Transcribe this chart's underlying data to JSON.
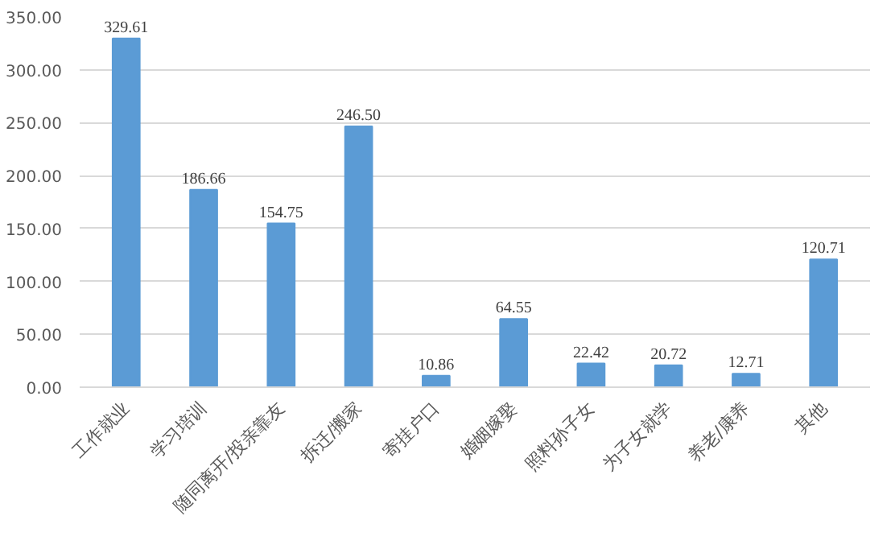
{
  "chart_data": {
    "type": "bar",
    "categories": [
      "工作就业",
      "学习培训",
      "随同离开/投亲靠友",
      "拆迁/搬家",
      "寄挂户口",
      "婚姻嫁娶",
      "照料孙子女",
      "为子女就学",
      "养老/康养",
      "其他"
    ],
    "values": [
      329.61,
      186.66,
      154.75,
      246.5,
      10.86,
      64.55,
      22.42,
      20.72,
      12.71,
      120.71
    ],
    "value_labels": [
      "329.61",
      "186.66",
      "154.75",
      "246.50",
      "10.86",
      "64.55",
      "22.42",
      "20.72",
      "12.71",
      "120.71"
    ],
    "color": "#5b9bd5",
    "ylim": [
      0,
      350
    ],
    "yticks": [
      {
        "value": 0,
        "label": "0.00"
      },
      {
        "value": 50,
        "label": "50.00"
      },
      {
        "value": 100,
        "label": "100.00"
      },
      {
        "value": 150,
        "label": "150.00"
      },
      {
        "value": 200,
        "label": "200.00"
      },
      {
        "value": 250,
        "label": "250.00"
      },
      {
        "value": 300,
        "label": "300.00"
      },
      {
        "value": 350,
        "label": "350.00"
      }
    ],
    "grid": "y"
  }
}
